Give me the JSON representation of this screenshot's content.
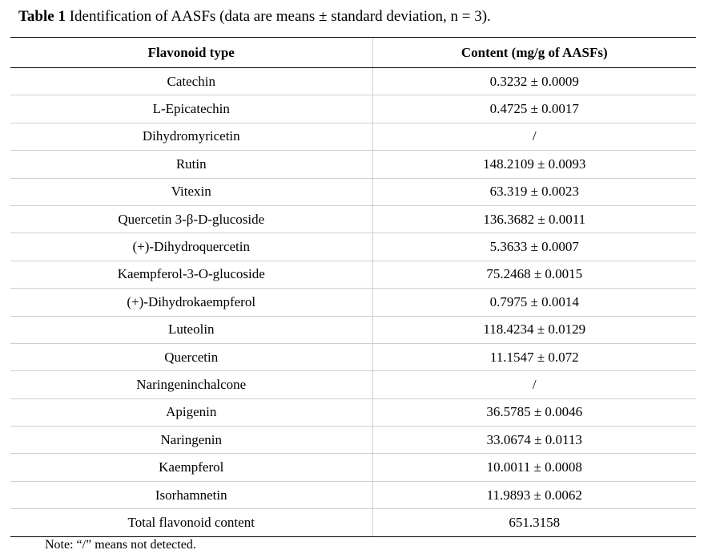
{
  "caption": {
    "label": "Table 1",
    "text": " Identification of AASFs (data are means ± standard deviation,  n = 3)."
  },
  "table": {
    "headers": [
      "Flavonoid type",
      "Content (mg/g of AASFs)"
    ],
    "rows": [
      {
        "name": "Catechin",
        "value": "0.3232 ± 0.0009"
      },
      {
        "name": "L-Epicatechin",
        "value": "0.4725 ± 0.0017"
      },
      {
        "name": "Dihydromyricetin",
        "value": "/"
      },
      {
        "name": "Rutin",
        "value": "148.2109 ± 0.0093"
      },
      {
        "name": "Vitexin",
        "value": "63.319 ± 0.0023"
      },
      {
        "name": "Quercetin 3-β-D-glucoside",
        "value": "136.3682 ± 0.0011"
      },
      {
        "name": "(+)-Dihydroquercetin",
        "value": "5.3633 ± 0.0007"
      },
      {
        "name": "Kaempferol-3-O-glucoside",
        "value": "75.2468 ± 0.0015"
      },
      {
        "name": "(+)-Dihydrokaempferol",
        "value": "0.7975 ± 0.0014"
      },
      {
        "name": "Luteolin",
        "value": "118.4234 ± 0.0129"
      },
      {
        "name": "Quercetin",
        "value": "11.1547 ± 0.072"
      },
      {
        "name": "Naringeninchalcone",
        "value": "/"
      },
      {
        "name": "Apigenin",
        "value": "36.5785 ± 0.0046"
      },
      {
        "name": "Naringenin",
        "value": "33.0674 ± 0.0113"
      },
      {
        "name": "Kaempferol",
        "value": "10.0011 ± 0.0008"
      },
      {
        "name": "Isorhamnetin",
        "value": "11.9893 ± 0.0062"
      },
      {
        "name": "Total flavonoid content",
        "value": "651.3158"
      }
    ]
  },
  "note": "Note: “/” means not detected."
}
